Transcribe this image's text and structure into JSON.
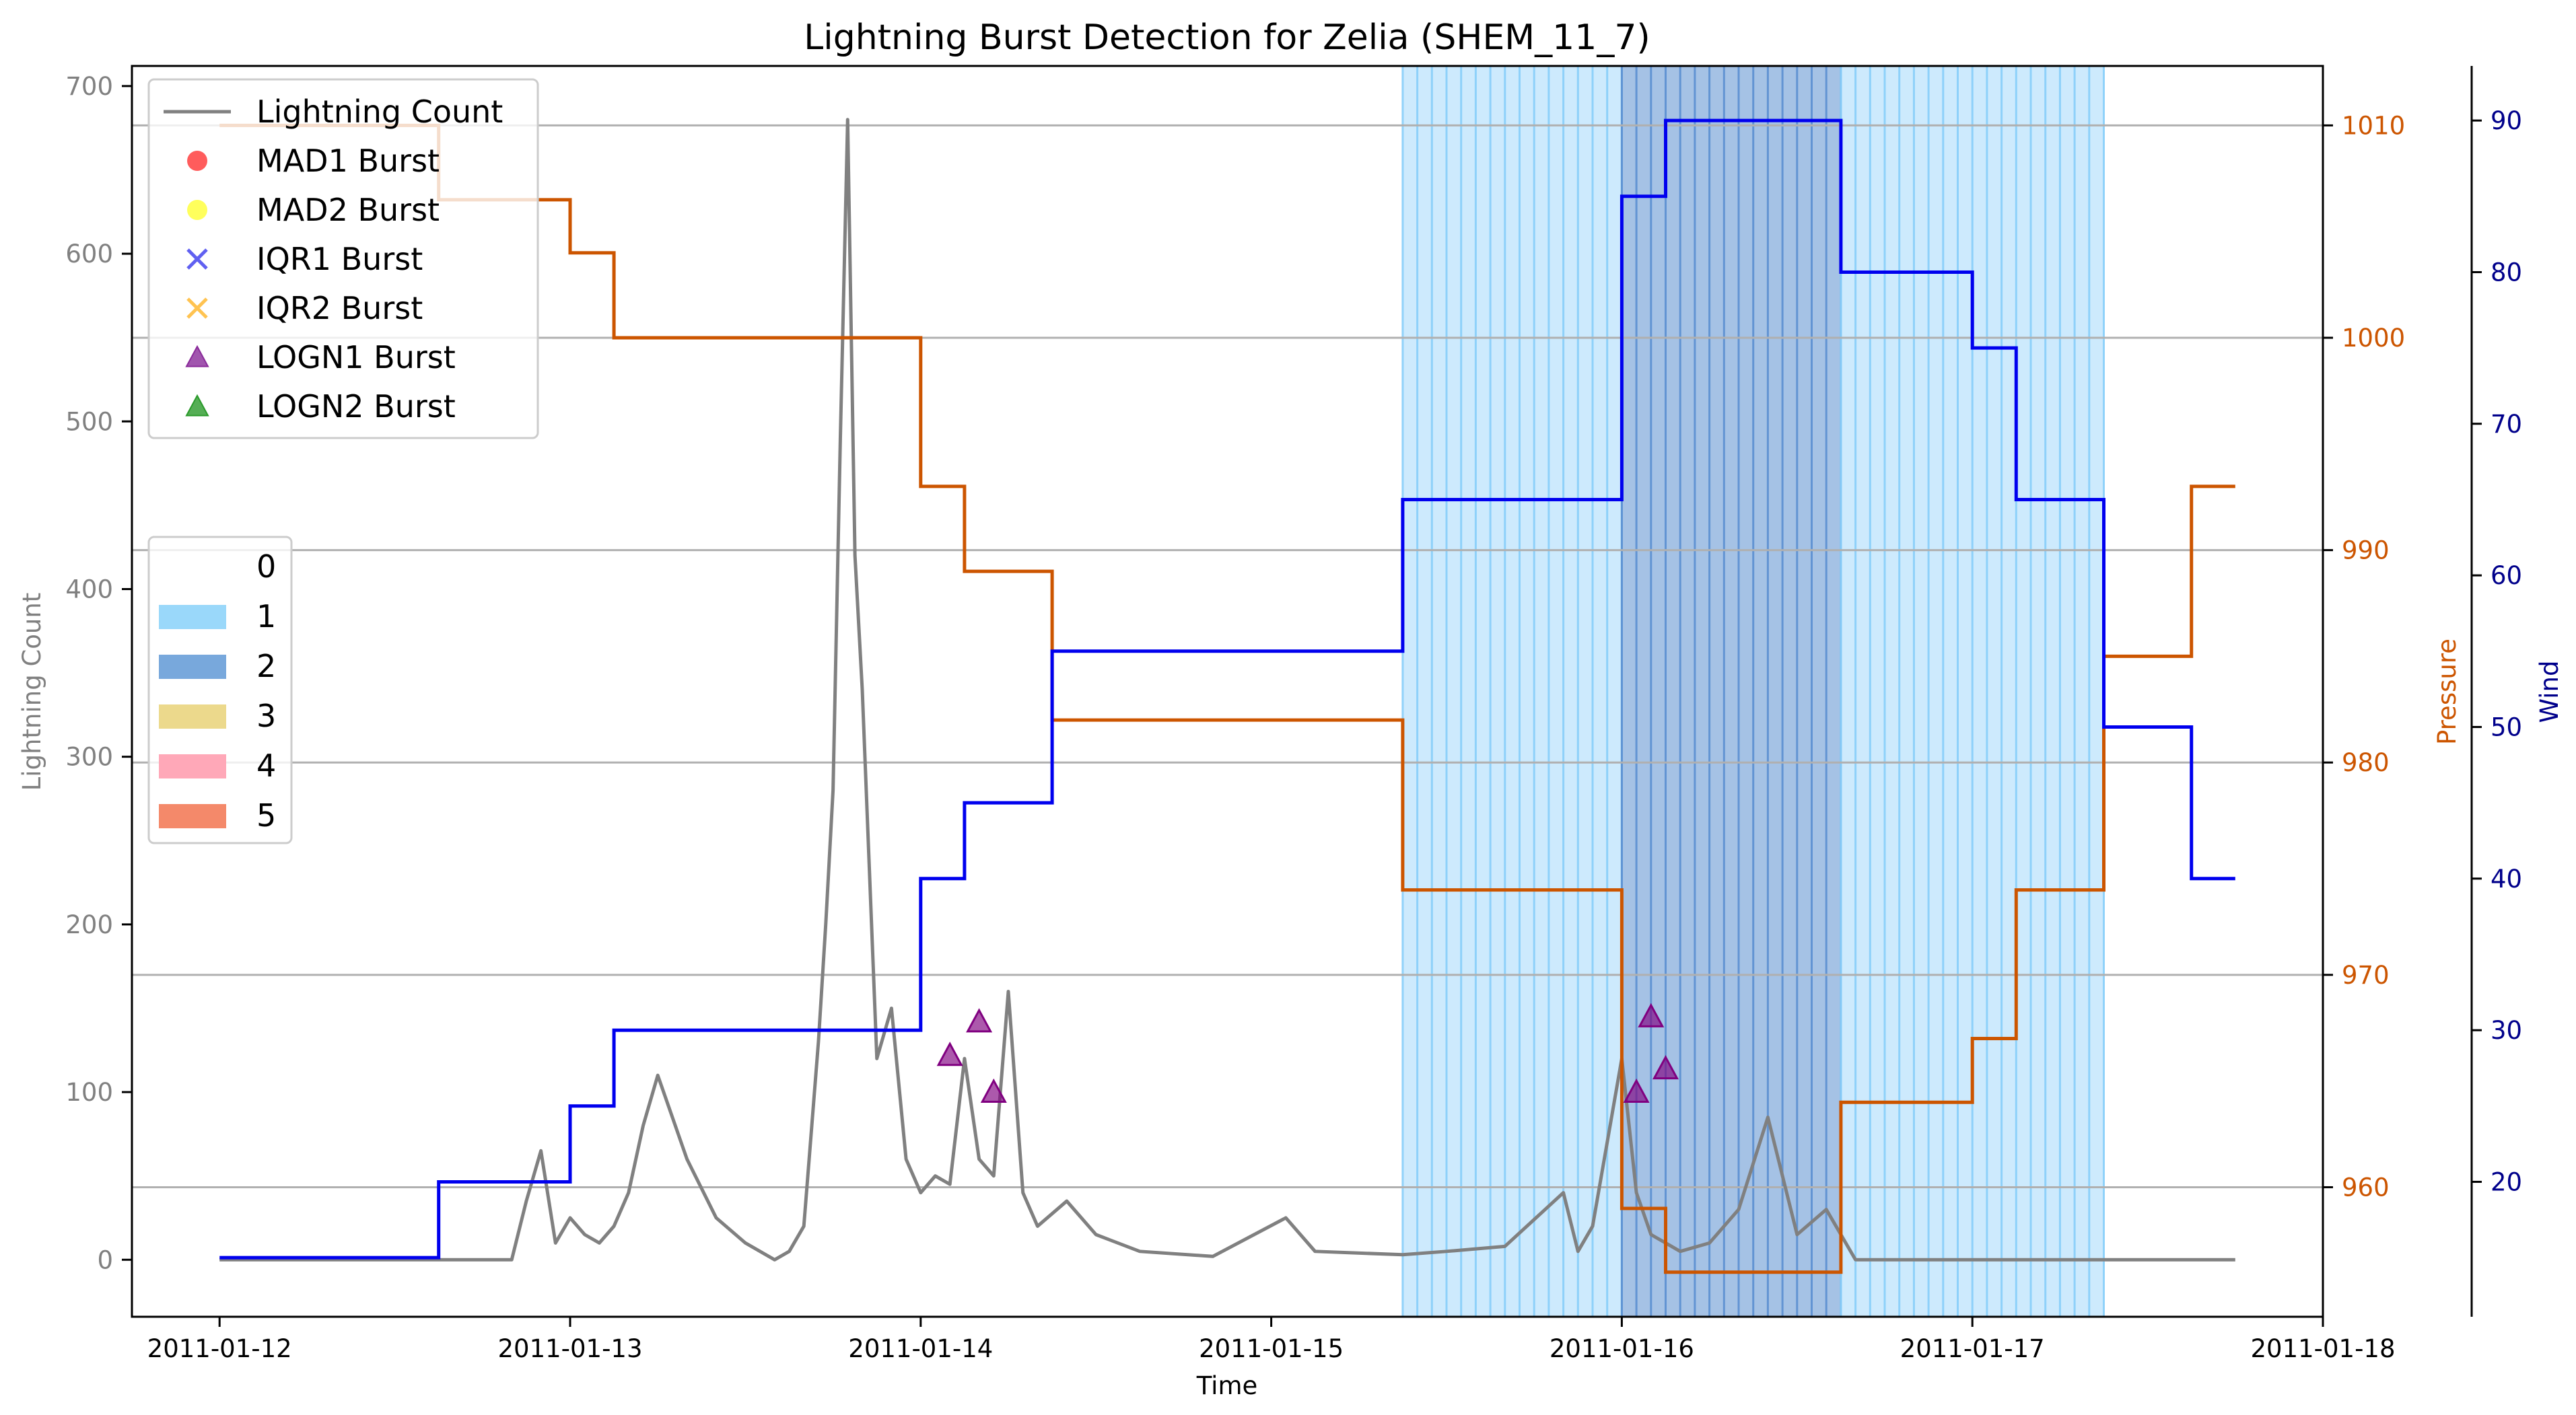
{
  "chart_data": {
    "type": "line",
    "title": "Lightning Burst Detection for Zelia (SHEM_11_7)",
    "xlabel": "Time",
    "ylabel_left": "Lightning Count",
    "ylabel_pressure": "Pressure",
    "ylabel_wind": "Wind",
    "x_ticks": [
      "2011-01-12",
      "2011-01-13",
      "2011-01-14",
      "2011-01-15",
      "2011-01-16",
      "2011-01-17",
      "2011-01-18"
    ],
    "x_range": [
      "2011-01-11 18:00",
      "2011-01-18 00:00"
    ],
    "left_ylim": [
      -34,
      712
    ],
    "left_ticks": [
      0,
      100,
      200,
      300,
      400,
      500,
      600,
      700
    ],
    "pressure_ylim": [
      953.9,
      1012.8
    ],
    "pressure_ticks": [
      960,
      970,
      980,
      990,
      1000,
      1010
    ],
    "wind_ylim": [
      11.1,
      93.6
    ],
    "wind_ticks": [
      20,
      30,
      40,
      50,
      60,
      70,
      80,
      90
    ],
    "grid": "horizontal lines at pressure ticks",
    "colors": {
      "lightning": "#808080",
      "pressure": "#cc5500",
      "wind": "#0000ee",
      "cat1": "#87cefa",
      "cat2": "#5b8fd0",
      "logn1": "#800080"
    },
    "category_bands": [
      {
        "category": 1,
        "start": "2011-01-15 09:00",
        "end": "2011-01-16 00:00"
      },
      {
        "category": 2,
        "start": "2011-01-16 00:00",
        "end": "2011-01-16 15:00"
      },
      {
        "category": 1,
        "start": "2011-01-16 15:00",
        "end": "2011-01-17 09:00"
      }
    ],
    "pressure": {
      "name": "Pressure",
      "t": [
        "2011-01-12 00:00",
        "2011-01-12 15:00",
        "2011-01-13 00:00",
        "2011-01-13 03:00",
        "2011-01-14 00:00",
        "2011-01-14 03:00",
        "2011-01-14 09:00",
        "2011-01-15 09:00",
        "2011-01-16 00:00",
        "2011-01-16 03:00",
        "2011-01-16 15:00",
        "2011-01-17 00:00",
        "2011-01-17 03:00",
        "2011-01-17 09:00",
        "2011-01-17 15:00",
        "2011-01-17 18:00"
      ],
      "values": [
        1010,
        1006.5,
        1004,
        1000,
        993,
        989,
        982,
        974,
        959,
        956,
        964,
        967,
        974,
        985,
        993,
        993
      ]
    },
    "wind": {
      "name": "Wind",
      "t": [
        "2011-01-12 00:00",
        "2011-01-12 15:00",
        "2011-01-13 00:00",
        "2011-01-13 03:00",
        "2011-01-14 00:00",
        "2011-01-14 03:00",
        "2011-01-14 09:00",
        "2011-01-15 09:00",
        "2011-01-16 00:00",
        "2011-01-16 03:00",
        "2011-01-16 15:00",
        "2011-01-17 00:00",
        "2011-01-17 03:00",
        "2011-01-17 09:00",
        "2011-01-17 15:00",
        "2011-01-17 18:00"
      ],
      "values": [
        15,
        20,
        25,
        30,
        40,
        45,
        55,
        65,
        85,
        90,
        80,
        75,
        65,
        50,
        40,
        40
      ]
    },
    "lightning": {
      "name": "Lightning Count",
      "t": [
        "2011-01-12 00:00",
        "2011-01-12 20:00",
        "2011-01-12 21:00",
        "2011-01-12 22:00",
        "2011-01-12 23:00",
        "2011-01-13 00:00",
        "2011-01-13 01:00",
        "2011-01-13 02:00",
        "2011-01-13 03:00",
        "2011-01-13 04:00",
        "2011-01-13 05:00",
        "2011-01-13 06:00",
        "2011-01-13 08:00",
        "2011-01-13 10:00",
        "2011-01-13 12:00",
        "2011-01-13 14:00",
        "2011-01-13 15:00",
        "2011-01-13 16:00",
        "2011-01-13 17:00",
        "2011-01-13 17:30",
        "2011-01-13 18:00",
        "2011-01-13 18:30",
        "2011-01-13 19:00",
        "2011-01-13 19:30",
        "2011-01-13 20:00",
        "2011-01-13 21:00",
        "2011-01-13 22:00",
        "2011-01-13 23:00",
        "2011-01-14 00:00",
        "2011-01-14 01:00",
        "2011-01-14 02:00",
        "2011-01-14 03:00",
        "2011-01-14 04:00",
        "2011-01-14 05:00",
        "2011-01-14 06:00",
        "2011-01-14 07:00",
        "2011-01-14 08:00",
        "2011-01-14 10:00",
        "2011-01-14 12:00",
        "2011-01-14 15:00",
        "2011-01-14 20:00",
        "2011-01-15 01:00",
        "2011-01-15 03:00",
        "2011-01-15 09:00",
        "2011-01-15 12:00",
        "2011-01-15 16:00",
        "2011-01-15 20:00",
        "2011-01-15 21:00",
        "2011-01-15 22:00",
        "2011-01-16 00:00",
        "2011-01-16 01:00",
        "2011-01-16 02:00",
        "2011-01-16 03:00",
        "2011-01-16 04:00",
        "2011-01-16 06:00",
        "2011-01-16 08:00",
        "2011-01-16 10:00",
        "2011-01-16 12:00",
        "2011-01-16 14:00",
        "2011-01-16 16:00",
        "2011-01-16 20:00",
        "2011-01-17 12:00",
        "2011-01-17 18:00"
      ],
      "values": [
        0,
        0,
        35,
        65,
        10,
        25,
        15,
        10,
        20,
        40,
        80,
        110,
        60,
        25,
        10,
        0,
        5,
        20,
        130,
        200,
        280,
        490,
        680,
        420,
        340,
        120,
        150,
        60,
        40,
        50,
        45,
        120,
        60,
        50,
        160,
        40,
        20,
        35,
        15,
        5,
        2,
        25,
        5,
        3,
        5,
        8,
        40,
        5,
        20,
        120,
        40,
        15,
        10,
        5,
        10,
        30,
        85,
        15,
        30,
        0,
        0,
        0,
        0
      ]
    },
    "logn1_points": [
      {
        "t": "2011-01-14 02:00",
        "value": 122
      },
      {
        "t": "2011-01-14 04:00",
        "value": 142
      },
      {
        "t": "2011-01-14 05:00",
        "value": 100
      },
      {
        "t": "2011-01-16 01:00",
        "value": 100
      },
      {
        "t": "2011-01-16 02:00",
        "value": 145
      },
      {
        "t": "2011-01-16 03:00",
        "value": 114
      }
    ],
    "legend_top": {
      "placement": "upper-left",
      "entries": [
        {
          "label": "Lightning Count",
          "marker": "line",
          "color": "#808080"
        },
        {
          "label": "MAD1 Burst",
          "marker": "circle",
          "color": "#ff3333"
        },
        {
          "label": "MAD2 Burst",
          "marker": "circle",
          "color": "#ffff33"
        },
        {
          "label": "IQR1 Burst",
          "marker": "x",
          "color": "#4444ee"
        },
        {
          "label": "IQR2 Burst",
          "marker": "x",
          "color": "#ffb833"
        },
        {
          "label": "LOGN1 Burst",
          "marker": "triangle",
          "color": "#8a2a9a"
        },
        {
          "label": "LOGN2 Burst",
          "marker": "triangle",
          "color": "#2a9a2a"
        }
      ]
    },
    "legend_categories": {
      "placement": "center-left",
      "entries": [
        {
          "label": "0",
          "color": "#ffffff"
        },
        {
          "label": "1",
          "color": "#9ad8fa"
        },
        {
          "label": "2",
          "color": "#78a8dc"
        },
        {
          "label": "3",
          "color": "#ecd98c"
        },
        {
          "label": "4",
          "color": "#ffa8b8"
        },
        {
          "label": "5",
          "color": "#f4896a"
        }
      ]
    }
  }
}
